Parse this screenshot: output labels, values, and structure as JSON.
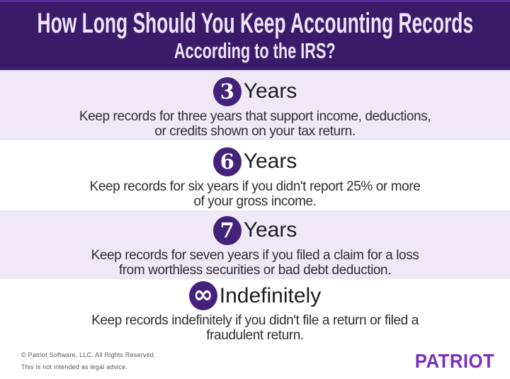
{
  "header": {
    "title_line1": "How Long Should You Keep Accounting Records",
    "title_line2": "According to the IRS?"
  },
  "sections": [
    {
      "badge": "3",
      "label": "Years",
      "body_line1": "Keep records for three years that support income, deductions,",
      "body_line2": "or credits shown on your tax return."
    },
    {
      "badge": "6",
      "label": "Years",
      "body_line1": "Keep records for six years if you didn't report 25% or more",
      "body_line2": "of your gross income."
    },
    {
      "badge": "7",
      "label": "Years",
      "body_line1": "Keep records for seven years if you filed a claim for a loss",
      "body_line2": "from worthless securities or bad debt deduction."
    },
    {
      "badge": "∞",
      "label": "Indefinitely",
      "body_line1": "Keep records indefinitely if you didn't file a return or filed a",
      "body_line2": "fraudulent return."
    }
  ],
  "footer": {
    "copyright": "© Patriot Software, LLC. All Rights Reserved.",
    "disclaimer": "This is not intended as legal advice.",
    "logo": "PATRIOT"
  },
  "colors": {
    "header_bg": "#3b1a69",
    "header_top_strip": "#5a2d9a",
    "section_alt_bg": "#efe9f7",
    "section_white_bg": "#ffffff",
    "badge_bg": "#44217a",
    "heading_text": "#1e1e22",
    "body_text": "#2e2e33",
    "legal_text": "#5a5a5e",
    "logo_purple": "#7b2fbe",
    "header_text": "#ece4f8"
  }
}
